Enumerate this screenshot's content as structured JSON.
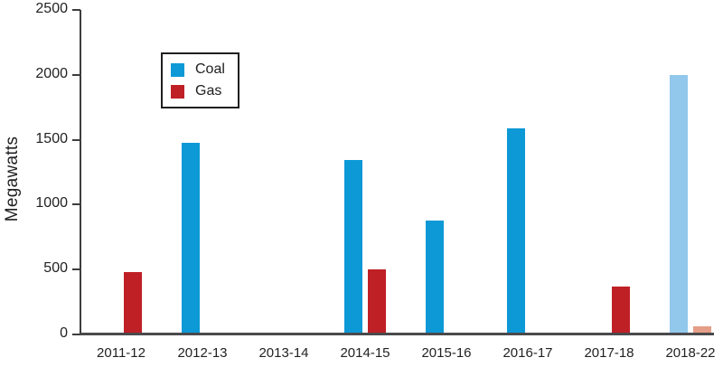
{
  "colors": {
    "coal": "#0d99d6",
    "gas": "#bf2026",
    "coal_projected": "#92c8ec",
    "gas_projected": "#e59e87",
    "axis": "#3d3d3f",
    "baseline": "#4a4a4c",
    "text": "#222224"
  },
  "chart_data": {
    "type": "bar",
    "title": "",
    "xlabel": "",
    "ylabel": "Megawatts",
    "ylim": [
      0,
      2500
    ],
    "yticks": [
      0,
      500,
      1000,
      1500,
      2000,
      2500
    ],
    "grid": false,
    "legend": {
      "position": "upper-left",
      "entries": [
        {
          "label": "Coal",
          "color": "#0d99d6"
        },
        {
          "label": "Gas",
          "color": "#bf2026"
        }
      ]
    },
    "categories": [
      "2011-12",
      "2012-13",
      "2013-14",
      "2014-15",
      "2015-16",
      "2016-17",
      "2017-18",
      "2018-22"
    ],
    "series": [
      {
        "name": "Coal",
        "values": [
          0,
          1480,
          0,
          1345,
          880,
          1590,
          0,
          2000
        ],
        "colors": [
          "#0d99d6",
          "#0d99d6",
          "#0d99d6",
          "#0d99d6",
          "#0d99d6",
          "#0d99d6",
          "#0d99d6",
          "#92c8ec"
        ]
      },
      {
        "name": "Gas",
        "values": [
          480,
          0,
          0,
          500,
          0,
          0,
          370,
          60
        ],
        "colors": [
          "#bf2026",
          "#bf2026",
          "#bf2026",
          "#bf2026",
          "#bf2026",
          "#bf2026",
          "#bf2026",
          "#e59e87"
        ]
      }
    ]
  }
}
